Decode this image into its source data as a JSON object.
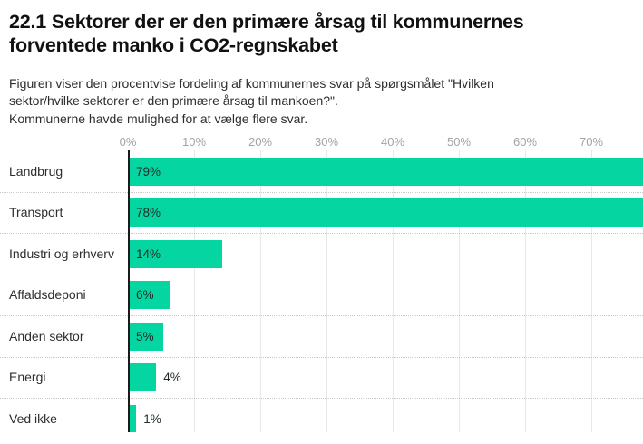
{
  "header": {
    "title_lines": [
      "22.1 Sektorer der er den primære årsag til kommunernes",
      "forventede manko i CO2-regnskabet"
    ],
    "subtitle_lines": [
      "Figuren viser den procentvise fordeling af kommunernes svar på spørgsmålet \"Hvilken",
      "sektor/hvilke sektorer er den primære årsag til mankoen?\".",
      "Kommunerne havde mulighed for at vælge flere svar."
    ]
  },
  "chart_data": {
    "type": "bar",
    "orientation": "horizontal",
    "title": "22.1 Sektorer der er den primære årsag til kommunernes forventede manko i CO2-regnskabet",
    "subtitle": "Figuren viser den procentvise fordeling af kommunernes svar på spørgsmålet \"Hvilken sektor/hvilke sektorer er den primære årsag til mankoen?\". Kommunerne havde mulighed for at vælge flere svar.",
    "categories": [
      "Landbrug",
      "Transport",
      "Industri og erhverv",
      "Affaldsdeponi",
      "Anden sektor",
      "Energi",
      "Ved ikke"
    ],
    "values": [
      79,
      78,
      14,
      6,
      5,
      4,
      1
    ],
    "value_labels": [
      "79%",
      "78%",
      "14%",
      "6%",
      "5%",
      "4%",
      "1%"
    ],
    "value_label_inside_bar": [
      true,
      true,
      true,
      true,
      true,
      false,
      false
    ],
    "x_tick_labels": [
      "0%",
      "10%",
      "20%",
      "30%",
      "40%",
      "50%",
      "60%",
      "70%"
    ],
    "xlim": [
      0,
      80
    ],
    "unit": "%",
    "grid": true,
    "legend": false,
    "colors": {
      "bar": "#05d5a1",
      "axis_line": "#1a1a1a",
      "gridline": "#e8e8e8",
      "row_separator": "#c8c8c8",
      "tick_label": "#a3a3a3",
      "category_label": "#2e2e2e",
      "value_label": "#1d2b27",
      "title": "#111111",
      "background": "#ffffff"
    }
  }
}
